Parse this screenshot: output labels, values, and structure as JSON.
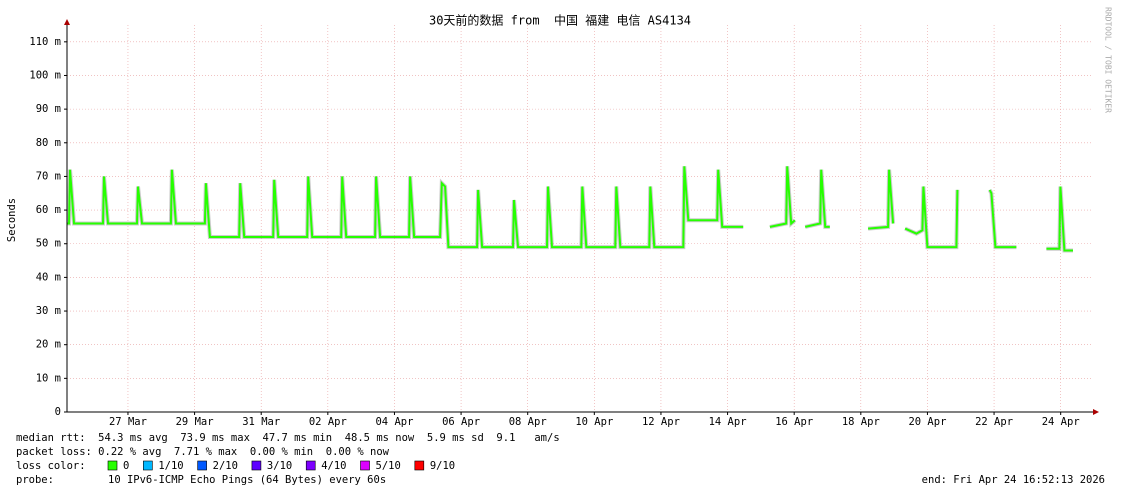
{
  "chart_data": {
    "type": "line",
    "title": "30天前的数据 from  中国 福建 电信 AS4134",
    "y_label": "Seconds",
    "credit": "RRDTOOL / TOBI OETIKER",
    "xlim": [
      0,
      30.8
    ],
    "xticks": [
      {
        "value": 1.83,
        "label": "27 Mar"
      },
      {
        "value": 3.83,
        "label": "29 Mar"
      },
      {
        "value": 5.83,
        "label": "31 Mar"
      },
      {
        "value": 7.83,
        "label": "02 Apr"
      },
      {
        "value": 9.83,
        "label": "04 Apr"
      },
      {
        "value": 11.83,
        "label": "06 Apr"
      },
      {
        "value": 13.83,
        "label": "08 Apr"
      },
      {
        "value": 15.83,
        "label": "10 Apr"
      },
      {
        "value": 17.83,
        "label": "12 Apr"
      },
      {
        "value": 19.83,
        "label": "14 Apr"
      },
      {
        "value": 21.83,
        "label": "16 Apr"
      },
      {
        "value": 23.83,
        "label": "18 Apr"
      },
      {
        "value": 25.83,
        "label": "20 Apr"
      },
      {
        "value": 27.83,
        "label": "22 Apr"
      },
      {
        "value": 29.83,
        "label": "24 Apr"
      }
    ],
    "ylim": [
      0,
      115
    ],
    "yticks": [
      0,
      {
        "value": 10,
        "label": "10 m"
      },
      {
        "value": 20,
        "label": "20 m"
      },
      {
        "value": 30,
        "label": "30 m"
      },
      {
        "value": 40,
        "label": "40 m"
      },
      {
        "value": 50,
        "label": "50 m"
      },
      {
        "value": 60,
        "label": "60 m"
      },
      {
        "value": 70,
        "label": "70 m"
      },
      {
        "value": 80,
        "label": "80 m"
      },
      {
        "value": 90,
        "label": "90 m"
      },
      {
        "value": 100,
        "label": "100 m"
      },
      {
        "value": 110,
        "label": "110 m"
      }
    ],
    "grid": true,
    "x": [
      0,
      0.06,
      0.09,
      0.21,
      1.08,
      1.11,
      1.23,
      2.1,
      2.13,
      2.25,
      3.12,
      3.15,
      3.27,
      4.14,
      4.17,
      4.29,
      5.17,
      5.2,
      5.32,
      6.19,
      6.22,
      6.34,
      7.21,
      7.24,
      7.36,
      8.23,
      8.26,
      8.38,
      9.25,
      9.28,
      9.4,
      10.27,
      10.3,
      10.42,
      11.2,
      11.25,
      11.35,
      11.45,
      12.31,
      12.34,
      12.46,
      13.39,
      13.42,
      13.54,
      14.41,
      14.44,
      14.56,
      15.44,
      15.47,
      15.59,
      16.46,
      16.49,
      16.61,
      17.48,
      17.51,
      17.63,
      18.5,
      18.53,
      18.65,
      19.52,
      19.55,
      19.67,
      20.3,
      20.6,
      21.1,
      21.59,
      21.62,
      21.74,
      21.85,
      22.0,
      22.16,
      22.61,
      22.64,
      22.76,
      22.9,
      23.5,
      24.05,
      24.65,
      24.68,
      24.8,
      25.0,
      25.16,
      25.5,
      25.68,
      25.71,
      25.83,
      26.7,
      26.73,
      27.2,
      27.7,
      27.75,
      27.87,
      28.5,
      29.0,
      29.4,
      29.79,
      29.82,
      29.94,
      30.2
    ],
    "series": [
      {
        "color": "#26ff00",
        "values": [
          56,
          56,
          72,
          56,
          56,
          70,
          56,
          56,
          67,
          56,
          56,
          72,
          56,
          56,
          68,
          52,
          52,
          68,
          52,
          52,
          69,
          52,
          52,
          70,
          52,
          52,
          70,
          52,
          52,
          70,
          52,
          52,
          70,
          52,
          52,
          68,
          67,
          49,
          49,
          66,
          49,
          49,
          63,
          49,
          49,
          67,
          49,
          49,
          67,
          49,
          49,
          67,
          49,
          49,
          67,
          49,
          49,
          73,
          57,
          57,
          72,
          55,
          55,
          null,
          55,
          56,
          73,
          56,
          57,
          null,
          55,
          56,
          72,
          55,
          55,
          null,
          54.5,
          55,
          72,
          56,
          null,
          54.5,
          53,
          54,
          67,
          49,
          49,
          66,
          null,
          66,
          65,
          49,
          49,
          null,
          48.5,
          48.5,
          67,
          48,
          48
        ]
      }
    ],
    "footer": {
      "median": "median rtt:  54.3 ms avg  73.9 ms max  47.7 ms min  48.5 ms now  5.9 ms sd  9.1   am/s",
      "loss": "packet loss: 0.22 % avg  7.71 % max  0.00 % min  0.00 % now",
      "loss_color_label": "loss color:",
      "loss_colors": [
        {
          "label": "0",
          "color": "#26ff00"
        },
        {
          "label": "1/10",
          "color": "#00b8ff"
        },
        {
          "label": "2/10",
          "color": "#0059ff"
        },
        {
          "label": "3/10",
          "color": "#5e00ff"
        },
        {
          "label": "4/10",
          "color": "#7e00ff"
        },
        {
          "label": "5/10",
          "color": "#dd00ff"
        },
        {
          "label": "9/10",
          "color": "#ff0000"
        }
      ],
      "probe_label": "probe:",
      "probe": "10 IPv6-ICMP Echo Pings (64 Bytes) every 60s",
      "end": "end: Fri Apr 24 16:52:13 2026"
    }
  }
}
